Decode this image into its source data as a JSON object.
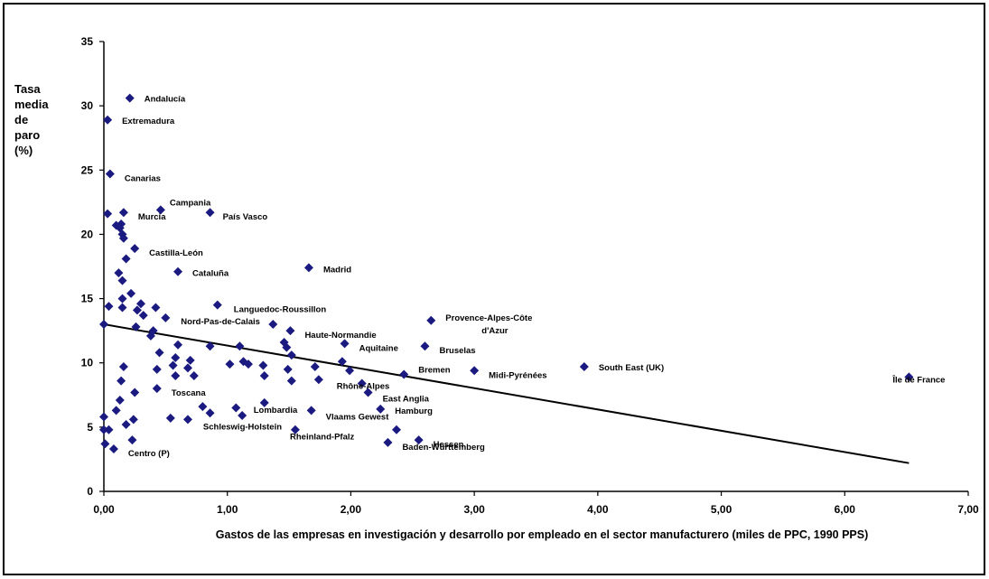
{
  "chart_data": {
    "type": "scatter",
    "ylabel_lines": [
      "Tasa",
      "media",
      "de",
      "paro",
      "(%)"
    ],
    "xlabel": "Gastos de las empresas en investigación y desarrollo por empleado en el sector manufacturero (miles de PPC, 1990 PPS)",
    "xlim": [
      0,
      7
    ],
    "ylim": [
      0,
      35
    ],
    "x_ticks": [
      0,
      1,
      2,
      3,
      4,
      5,
      6,
      7
    ],
    "x_tick_labels": [
      "0,00",
      "1,00",
      "2,00",
      "3,00",
      "4,00",
      "5,00",
      "6,00",
      "7,00"
    ],
    "y_ticks": [
      0,
      5,
      10,
      15,
      20,
      25,
      30,
      35
    ],
    "y_tick_labels": [
      "0",
      "5",
      "10",
      "15",
      "20",
      "25",
      "30",
      "35"
    ],
    "grid": false,
    "marker_color": "#1a1a80",
    "trendline": {
      "x": [
        0.0,
        6.52
      ],
      "y": [
        13.0,
        2.2
      ]
    },
    "points": [
      {
        "x": 0.21,
        "y": 30.6,
        "label": "Andalucía"
      },
      {
        "x": 0.03,
        "y": 28.9,
        "label": "Extremadura"
      },
      {
        "x": 0.05,
        "y": 24.7,
        "label": "Canarias"
      },
      {
        "x": 0.46,
        "y": 21.9,
        "label": "Campania"
      },
      {
        "x": 0.86,
        "y": 21.7,
        "label": "País Vasco"
      },
      {
        "x": 0.16,
        "y": 21.7,
        "label": "Murcia"
      },
      {
        "x": 0.25,
        "y": 18.9,
        "label": "Castilla-León"
      },
      {
        "x": 0.6,
        "y": 17.1,
        "label": "Cataluña"
      },
      {
        "x": 1.66,
        "y": 17.4,
        "label": "Madrid"
      },
      {
        "x": 0.92,
        "y": 14.5,
        "label": "Languedoc-Roussillon"
      },
      {
        "x": 1.37,
        "y": 13.0,
        "label": "Nord-Pas-de-Calais"
      },
      {
        "x": 2.65,
        "y": 13.3,
        "label": "Provence-Alpes-Côte d'Azur"
      },
      {
        "x": 1.51,
        "y": 12.5,
        "label": "Haute-Normandie"
      },
      {
        "x": 1.95,
        "y": 11.5,
        "label": "Aquitaine"
      },
      {
        "x": 2.6,
        "y": 11.3,
        "label": "Bruselas"
      },
      {
        "x": 3.0,
        "y": 9.4,
        "label": "Midi-Pyrénées"
      },
      {
        "x": 3.89,
        "y": 9.7,
        "label": "South East (UK)"
      },
      {
        "x": 6.52,
        "y": 8.9,
        "label": "Île de France"
      },
      {
        "x": 2.43,
        "y": 9.1,
        "label": "Bremen"
      },
      {
        "x": 2.09,
        "y": 8.4,
        "label": "Rhône-Alpes"
      },
      {
        "x": 0.43,
        "y": 8.0,
        "label": "Toscana"
      },
      {
        "x": 2.14,
        "y": 7.7,
        "label": "East Anglia"
      },
      {
        "x": 2.24,
        "y": 6.4,
        "label": "Hamburg"
      },
      {
        "x": 1.3,
        "y": 6.9,
        "label": "Lombardia"
      },
      {
        "x": 1.68,
        "y": 6.3,
        "label": "Vlaams Gewest"
      },
      {
        "x": 1.55,
        "y": 4.8,
        "label": "Schleswig-Holstein"
      },
      {
        "x": 2.37,
        "y": 4.8,
        "label": "Rheinland-Pfalz"
      },
      {
        "x": 2.55,
        "y": 4.0,
        "label": "Hessen"
      },
      {
        "x": 2.3,
        "y": 3.8,
        "label": "Baden-Württemberg"
      },
      {
        "x": 0.08,
        "y": 3.3,
        "label": "Centro (P)"
      },
      {
        "x": 0.03,
        "y": 21.6
      },
      {
        "x": 0.1,
        "y": 20.7
      },
      {
        "x": 0.14,
        "y": 20.8
      },
      {
        "x": 0.13,
        "y": 20.5
      },
      {
        "x": 0.15,
        "y": 20.0
      },
      {
        "x": 0.16,
        "y": 19.7
      },
      {
        "x": 0.18,
        "y": 18.1
      },
      {
        "x": 0.12,
        "y": 17.0
      },
      {
        "x": 0.15,
        "y": 16.4
      },
      {
        "x": 0.22,
        "y": 15.4
      },
      {
        "x": 0.15,
        "y": 15.0
      },
      {
        "x": 0.3,
        "y": 14.6
      },
      {
        "x": 0.04,
        "y": 14.4
      },
      {
        "x": 0.15,
        "y": 14.3
      },
      {
        "x": 0.27,
        "y": 14.1
      },
      {
        "x": 0.42,
        "y": 14.3
      },
      {
        "x": 0.32,
        "y": 13.7
      },
      {
        "x": 0.0,
        "y": 13.0
      },
      {
        "x": 0.26,
        "y": 12.8
      },
      {
        "x": 0.4,
        "y": 12.5
      },
      {
        "x": 0.38,
        "y": 12.1
      },
      {
        "x": 0.5,
        "y": 13.5
      },
      {
        "x": 0.6,
        "y": 11.4
      },
      {
        "x": 0.86,
        "y": 11.3
      },
      {
        "x": 1.1,
        "y": 11.3
      },
      {
        "x": 1.48,
        "y": 11.2
      },
      {
        "x": 1.46,
        "y": 11.6
      },
      {
        "x": 0.45,
        "y": 10.8
      },
      {
        "x": 0.58,
        "y": 10.4
      },
      {
        "x": 1.52,
        "y": 10.6
      },
      {
        "x": 0.7,
        "y": 10.2
      },
      {
        "x": 0.56,
        "y": 9.8
      },
      {
        "x": 1.02,
        "y": 9.9
      },
      {
        "x": 1.13,
        "y": 10.1
      },
      {
        "x": 1.17,
        "y": 9.9
      },
      {
        "x": 1.29,
        "y": 9.8
      },
      {
        "x": 0.16,
        "y": 9.7
      },
      {
        "x": 0.43,
        "y": 9.5
      },
      {
        "x": 0.68,
        "y": 9.6
      },
      {
        "x": 1.71,
        "y": 9.7
      },
      {
        "x": 1.49,
        "y": 9.5
      },
      {
        "x": 1.93,
        "y": 10.1
      },
      {
        "x": 0.58,
        "y": 9.0
      },
      {
        "x": 0.73,
        "y": 9.0
      },
      {
        "x": 1.3,
        "y": 9.0
      },
      {
        "x": 1.99,
        "y": 9.4
      },
      {
        "x": 0.14,
        "y": 8.6
      },
      {
        "x": 1.52,
        "y": 8.6
      },
      {
        "x": 1.74,
        "y": 8.7
      },
      {
        "x": 0.25,
        "y": 7.7
      },
      {
        "x": 0.13,
        "y": 7.1
      },
      {
        "x": 0.8,
        "y": 6.6
      },
      {
        "x": 1.07,
        "y": 6.5
      },
      {
        "x": 0.1,
        "y": 6.3
      },
      {
        "x": 0.86,
        "y": 6.1
      },
      {
        "x": 1.12,
        "y": 5.9
      },
      {
        "x": 0.0,
        "y": 5.8
      },
      {
        "x": 0.54,
        "y": 5.7
      },
      {
        "x": 0.68,
        "y": 5.6
      },
      {
        "x": 0.24,
        "y": 5.6
      },
      {
        "x": 0.18,
        "y": 5.2
      },
      {
        "x": 0.0,
        "y": 4.8
      },
      {
        "x": 0.04,
        "y": 4.8
      },
      {
        "x": 0.23,
        "y": 4.0
      },
      {
        "x": 0.01,
        "y": 3.7
      }
    ]
  }
}
